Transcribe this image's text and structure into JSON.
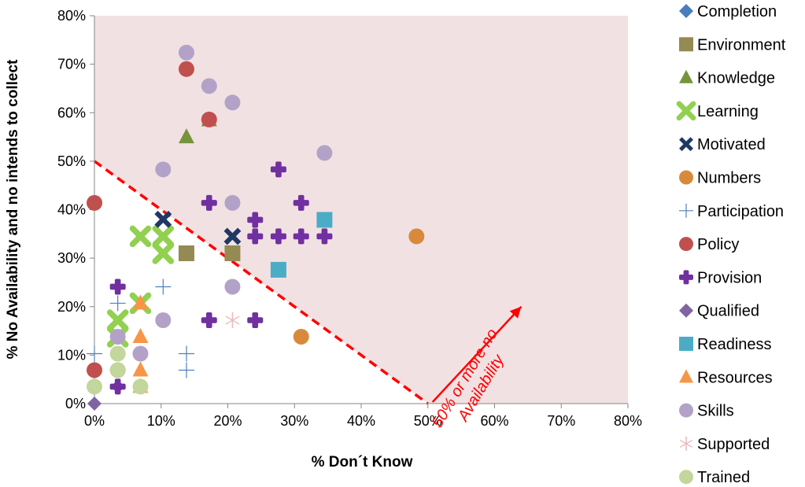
{
  "chart_data": {
    "type": "scatter",
    "xlabel": "% Don´t Know",
    "ylabel": "% No Availability and no intends to collect",
    "xlim": [
      0,
      80
    ],
    "ylim": [
      0,
      80
    ],
    "xticks": [
      "0%",
      "10%",
      "20%",
      "30%",
      "40%",
      "50%",
      "60%",
      "70%",
      "80%"
    ],
    "yticks": [
      "0%",
      "10%",
      "20%",
      "30%",
      "40%",
      "50%",
      "60%",
      "70%",
      "80%"
    ],
    "grid": false,
    "legend_position": "right",
    "shaded_region": {
      "description_color": "#f2e1e3"
    },
    "threshold_line": {
      "x": [
        0,
        50
      ],
      "y": [
        50,
        0
      ],
      "color": "#ff0000",
      "style": "dashed"
    },
    "annotation": {
      "lines": [
        "50% or more no",
        "Availability"
      ],
      "color": "#ff0000"
    },
    "series": [
      {
        "name": "Completion",
        "marker": "diamond",
        "color": "#4a7ebb",
        "points": [
          [
            3.5,
            3.5
          ]
        ]
      },
      {
        "name": "Environment",
        "marker": "square",
        "color": "#948a54",
        "points": [
          [
            13.8,
            31
          ],
          [
            20.7,
            31
          ]
        ]
      },
      {
        "name": "Knowledge",
        "marker": "triangle",
        "color": "#77933c",
        "points": [
          [
            13.8,
            55
          ],
          [
            17.2,
            58.5
          ]
        ]
      },
      {
        "name": "Learning",
        "marker": "x-bold",
        "color": "#92d050",
        "points": [
          [
            3.5,
            13.8
          ],
          [
            3.5,
            17.2
          ],
          [
            6.9,
            34.5
          ],
          [
            10.3,
            34.5
          ],
          [
            10.3,
            31
          ],
          [
            6.9,
            20.7
          ]
        ]
      },
      {
        "name": "Motivated",
        "marker": "x-navy",
        "color": "#1f3864",
        "points": [
          [
            10.3,
            38
          ],
          [
            20.7,
            34.5
          ]
        ]
      },
      {
        "name": "Numbers",
        "marker": "circle",
        "color": "#d88a3c",
        "points": [
          [
            48.3,
            34.5
          ],
          [
            31,
            13.8
          ]
        ]
      },
      {
        "name": "Participation",
        "marker": "plus-thin",
        "color": "#4f81bd",
        "points": [
          [
            0,
            10.3
          ],
          [
            3.5,
            20.7
          ],
          [
            3.5,
            6.9
          ],
          [
            3.5,
            3.5
          ],
          [
            10.3,
            24.1
          ],
          [
            13.8,
            10.3
          ],
          [
            13.8,
            6.9
          ]
        ]
      },
      {
        "name": "Policy",
        "marker": "circle",
        "color": "#c0504d",
        "points": [
          [
            0,
            41.4
          ],
          [
            0,
            6.9
          ],
          [
            13.8,
            69
          ],
          [
            17.2,
            58.6
          ]
        ]
      },
      {
        "name": "Provision",
        "marker": "plus-bold",
        "color": "#7030a0",
        "points": [
          [
            3.5,
            24.1
          ],
          [
            3.5,
            3.5
          ],
          [
            17.2,
            41.4
          ],
          [
            17.2,
            17.2
          ],
          [
            24.1,
            37.9
          ],
          [
            24.1,
            34.5
          ],
          [
            24.1,
            17.2
          ],
          [
            27.6,
            48.3
          ],
          [
            27.6,
            34.5
          ],
          [
            31,
            41.4
          ],
          [
            31,
            34.5
          ],
          [
            34.5,
            34.5
          ]
        ]
      },
      {
        "name": "Qualified",
        "marker": "diamond",
        "color": "#8064a2",
        "points": [
          [
            0,
            0
          ]
        ]
      },
      {
        "name": "Readiness",
        "marker": "square",
        "color": "#4bacc6",
        "points": [
          [
            27.6,
            27.6
          ],
          [
            34.5,
            37.9
          ]
        ]
      },
      {
        "name": "Resources",
        "marker": "triangle",
        "color": "#f79646",
        "points": [
          [
            6.9,
            20.7
          ],
          [
            6.9,
            13.8
          ],
          [
            6.9,
            6.9
          ],
          [
            6.9,
            3.5
          ]
        ]
      },
      {
        "name": "Skills",
        "marker": "circle",
        "color": "#b3a2c7",
        "points": [
          [
            3.5,
            13.8
          ],
          [
            3.5,
            6.9
          ],
          [
            6.9,
            10.3
          ],
          [
            10.3,
            17.2
          ],
          [
            10.3,
            48.3
          ],
          [
            13.8,
            72.4
          ],
          [
            17.2,
            65.5
          ],
          [
            20.7,
            62.1
          ],
          [
            20.7,
            41.4
          ],
          [
            20.7,
            24.1
          ],
          [
            34.5,
            51.7
          ]
        ]
      },
      {
        "name": "Supported",
        "marker": "asterisk",
        "color": "#e6b9b8",
        "points": [
          [
            20.7,
            17.2
          ]
        ]
      },
      {
        "name": "Trained",
        "marker": "circle",
        "color": "#c3d69b",
        "points": [
          [
            0,
            3.5
          ],
          [
            3.5,
            10.3
          ],
          [
            3.5,
            6.9
          ],
          [
            6.9,
            3.5
          ]
        ]
      }
    ]
  }
}
